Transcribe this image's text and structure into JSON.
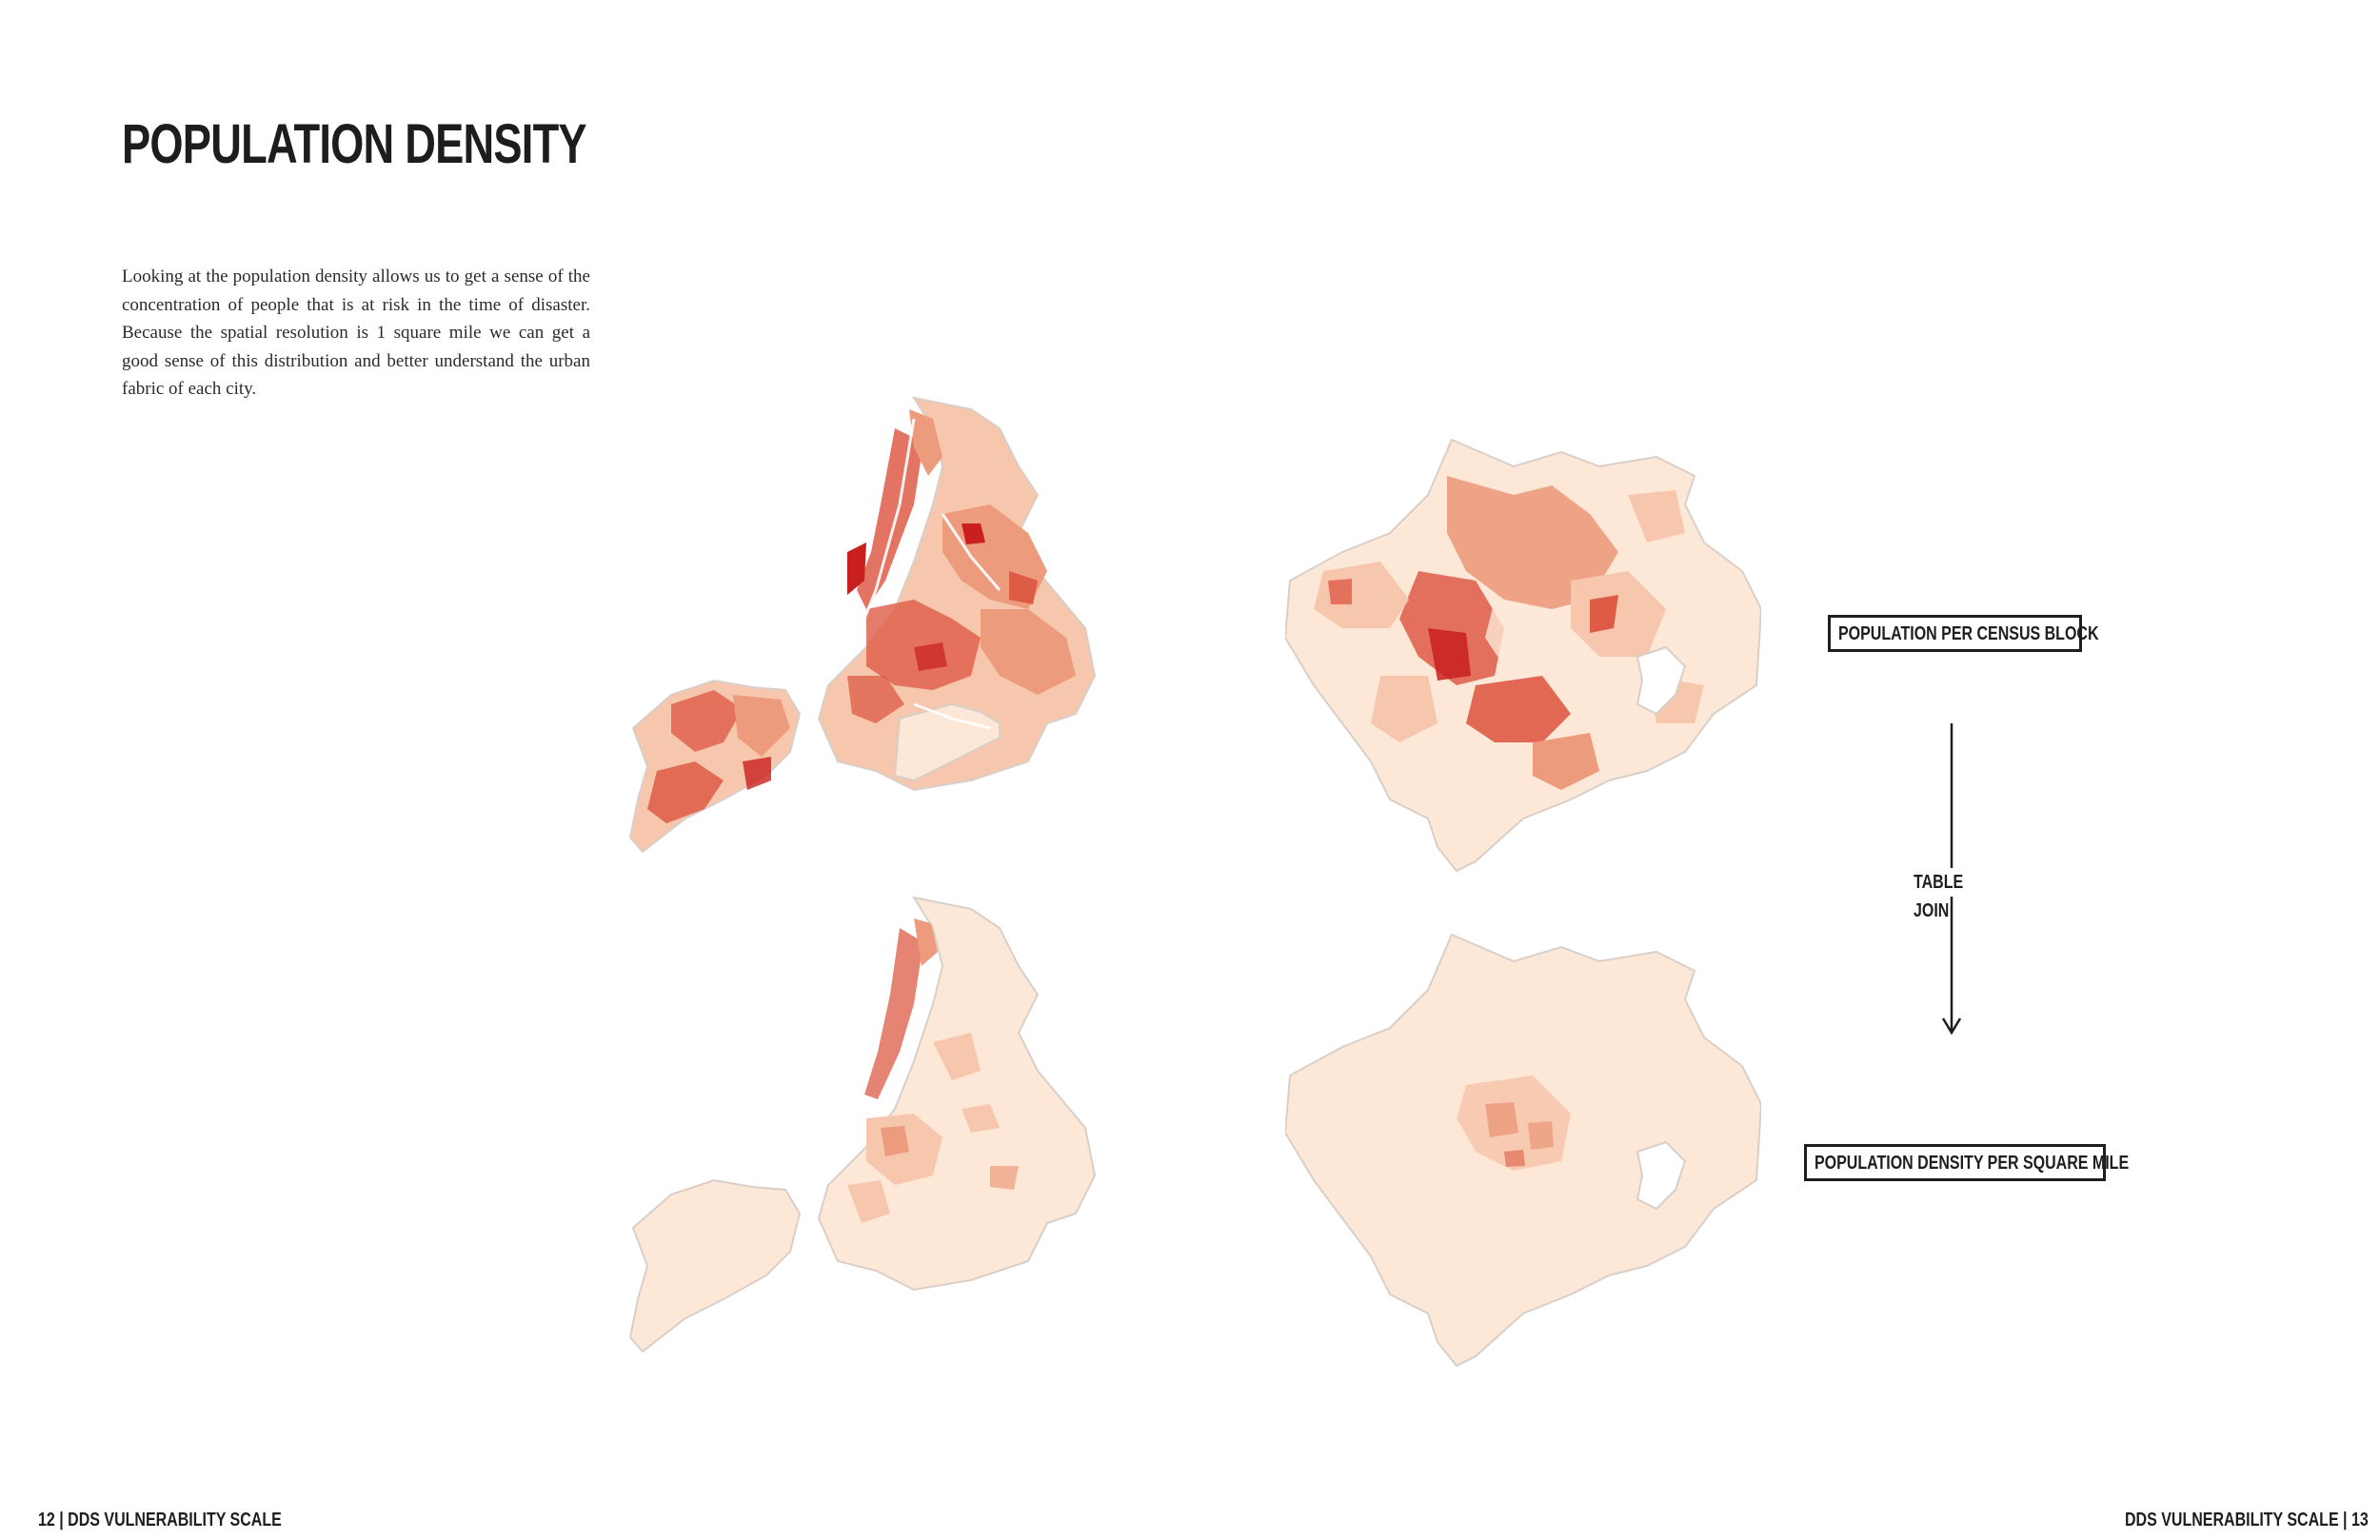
{
  "page": {
    "title": "POPULATION DENSITY",
    "intro": "Looking at the population density allows us to get a sense of the concentration of people that is at risk in the time of disaster. Because the spatial resolution is 1 square mile we can get a good sense of this distribution and better understand the urban fabric of each city."
  },
  "labels": {
    "census_block": "POPULATION PER CENSUS BLOCK",
    "table_join": "TABLE JOIN",
    "density_square_mile": "POPULATION DENSITY PER SQUARE MILE"
  },
  "footer": {
    "left": "12 | DDS VULNERABILITY SCALE",
    "right": "DDS VULNERABILITY SCALE | 13"
  },
  "colors": {
    "base_fill": "#fde8d7",
    "light": "#f6c6ad",
    "medium": "#ec9b7d",
    "strong": "#de5b46",
    "darkest": "#c91f1f",
    "outline": "#d9cfc8"
  }
}
